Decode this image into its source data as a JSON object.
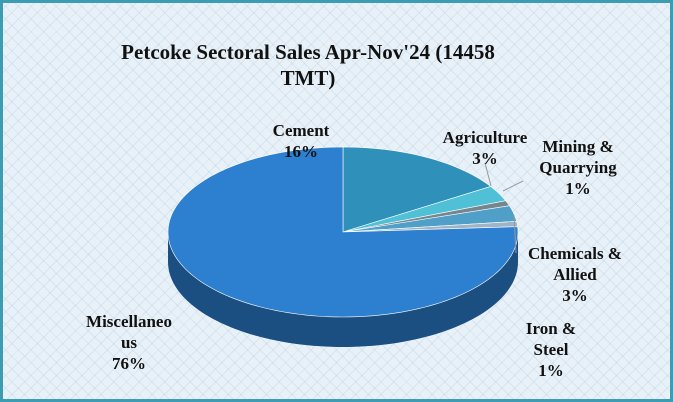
{
  "chart_data": {
    "type": "pie3d",
    "title": "Petcoke Sectoral Sales Apr-Nov'24 (14458 TMT)",
    "categories": [
      "Cement",
      "Agriculture",
      "Mining & Quarrying",
      "Chemicals & Allied",
      "Iron & Steel",
      "Miscellaneous"
    ],
    "values": [
      16,
      3,
      1,
      3,
      1,
      76
    ],
    "value_labels": [
      "16%",
      "3%",
      "1%",
      "3%",
      "1%",
      "76%"
    ],
    "colors": [
      "#2f91b9",
      "#4fc0d6",
      "#76868f",
      "#4f9fc9",
      "#9fb4c6",
      "#2d80d0"
    ]
  }
}
